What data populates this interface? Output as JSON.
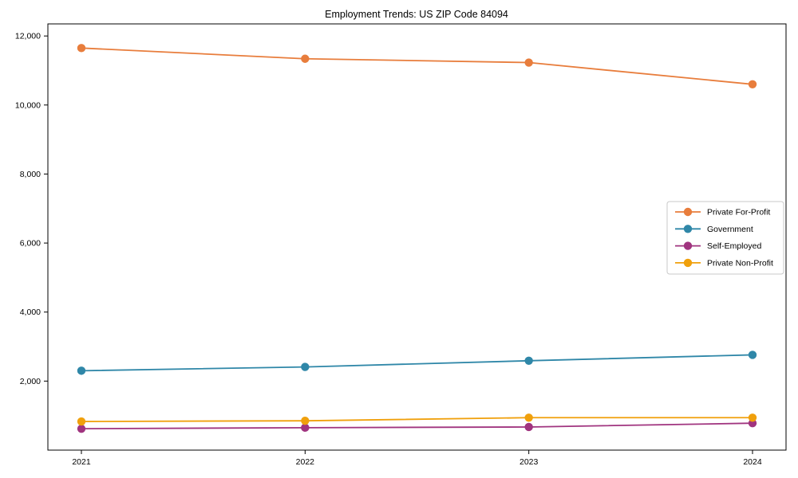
{
  "chart_data": {
    "type": "line",
    "title": "Employment Trends: US ZIP Code 84094",
    "xlabel": "",
    "ylabel": "",
    "x": [
      2021,
      2022,
      2023,
      2024
    ],
    "xtick_labels": [
      "2021",
      "2022",
      "2023",
      "2024"
    ],
    "yticks": [
      2000,
      4000,
      6000,
      8000,
      10000,
      12000
    ],
    "ytick_labels": [
      "2,000",
      "4,000",
      "6,000",
      "8,000",
      "10,000",
      "12,000"
    ],
    "ylim": [
      0,
      12350
    ],
    "grid": false,
    "marker": "circle",
    "legend_position": "center right",
    "axis_color": "#000000",
    "background_color": "#ffffff",
    "legend_border_color": "#c9c9c9",
    "series": [
      {
        "name": "Private For-Profit",
        "color": "#e87d3c",
        "values": [
          11650,
          11340,
          11230,
          10600
        ]
      },
      {
        "name": "Government",
        "color": "#2f87a8",
        "values": [
          2300,
          2410,
          2590,
          2760
        ]
      },
      {
        "name": "Self-Employed",
        "color": "#a0347f",
        "values": [
          620,
          650,
          670,
          780
        ]
      },
      {
        "name": "Private Non-Profit",
        "color": "#f0a00c",
        "values": [
          830,
          850,
          940,
          940
        ]
      }
    ]
  }
}
